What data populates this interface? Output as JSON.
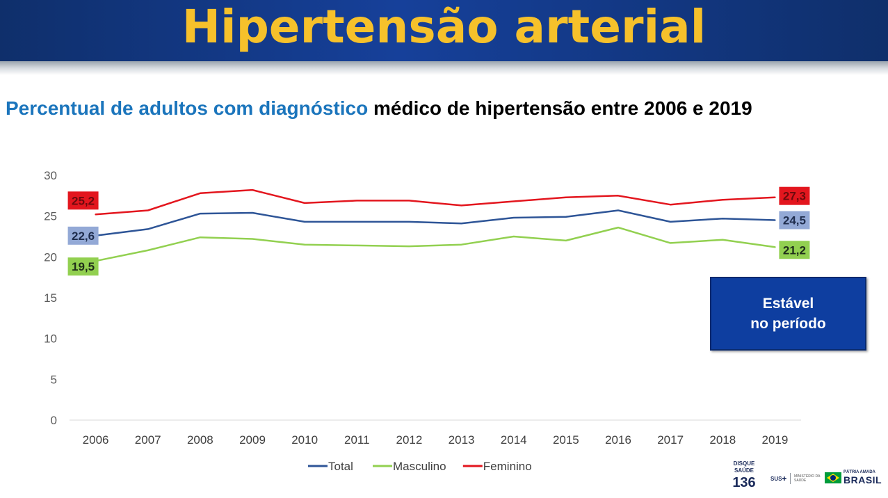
{
  "header": {
    "title": "Hipertensão arterial"
  },
  "subtitle": {
    "part1": "Percentual de adultos com diagnóstico",
    "part2": "médico de hipertensão entre 2006 e 2019"
  },
  "status_box": {
    "line1": "Estável",
    "line2": "no período"
  },
  "footer": {
    "disque_line1": "DISQUE",
    "disque_line2": "SAÚDE",
    "disque_number": "136",
    "sus": "SUS",
    "ministerio": "MINISTÉRIO DA SAÚDE",
    "patria": "PÁTRIA AMADA",
    "brasil": "BRASIL"
  },
  "chart_data": {
    "type": "line",
    "categories": [
      "2006",
      "2007",
      "2008",
      "2009",
      "2010",
      "2011",
      "2012",
      "2013",
      "2014",
      "2015",
      "2016",
      "2017",
      "2018",
      "2019"
    ],
    "ylim": [
      0,
      30
    ],
    "yticks": [
      0,
      5,
      10,
      15,
      20,
      25,
      30
    ],
    "grid": false,
    "legend_position": "bottom",
    "series": [
      {
        "name": "Total",
        "color": "#2e5597",
        "values": [
          22.6,
          23.4,
          25.3,
          25.4,
          24.3,
          24.3,
          24.3,
          24.1,
          24.8,
          24.9,
          25.7,
          24.3,
          24.7,
          24.5
        ],
        "start_label": "22,6",
        "end_label": "24,5",
        "label_bg": "#93a9d6",
        "label_color": "#1f2d4d"
      },
      {
        "name": "Masculino",
        "color": "#92d050",
        "values": [
          19.5,
          20.8,
          22.4,
          22.2,
          21.5,
          21.4,
          21.3,
          21.5,
          22.5,
          22.0,
          23.6,
          21.7,
          22.1,
          21.2
        ],
        "start_label": "19,5",
        "end_label": "21,2",
        "label_bg": "#92d050",
        "label_color": "#1f2d1a"
      },
      {
        "name": "Feminino",
        "color": "#e3161e",
        "values": [
          25.2,
          25.7,
          27.8,
          28.2,
          26.6,
          26.9,
          26.9,
          26.3,
          26.8,
          27.3,
          27.5,
          26.4,
          27.0,
          27.3
        ],
        "start_label": "25,2",
        "end_label": "27,3",
        "label_bg": "#e3161e",
        "label_color": "#6b0a0d"
      }
    ]
  }
}
